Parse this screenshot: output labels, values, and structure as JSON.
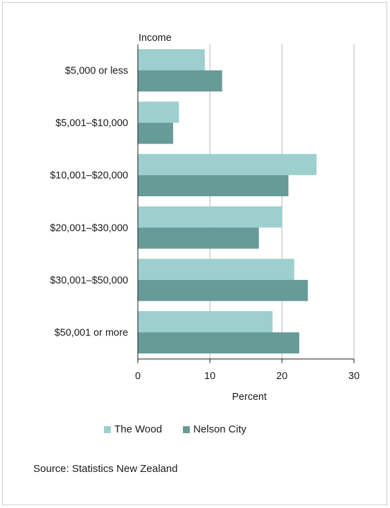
{
  "chart_data": {
    "type": "bar",
    "orientation": "horizontal",
    "title": "",
    "ylabel": "Income",
    "xlabel": "Percent",
    "xlim": [
      0,
      30
    ],
    "xticks": [
      0,
      10,
      20,
      30
    ],
    "grid": true,
    "legend_position": "bottom",
    "categories": [
      "$5,000 or less",
      "$5,001–$10,000",
      "$10,001–$20,000",
      "$20,001–$30,000",
      "$30,001–$50,000",
      "$50,001 or more"
    ],
    "series": [
      {
        "name": "The Wood",
        "color": "#9dcfcf",
        "values": [
          9.3,
          5.7,
          24.8,
          20.0,
          21.7,
          18.7
        ]
      },
      {
        "name": "Nelson City",
        "color": "#679b98",
        "values": [
          11.7,
          4.9,
          20.9,
          16.8,
          23.6,
          22.4
        ]
      }
    ]
  },
  "source": "Source: Statistics New Zealand"
}
